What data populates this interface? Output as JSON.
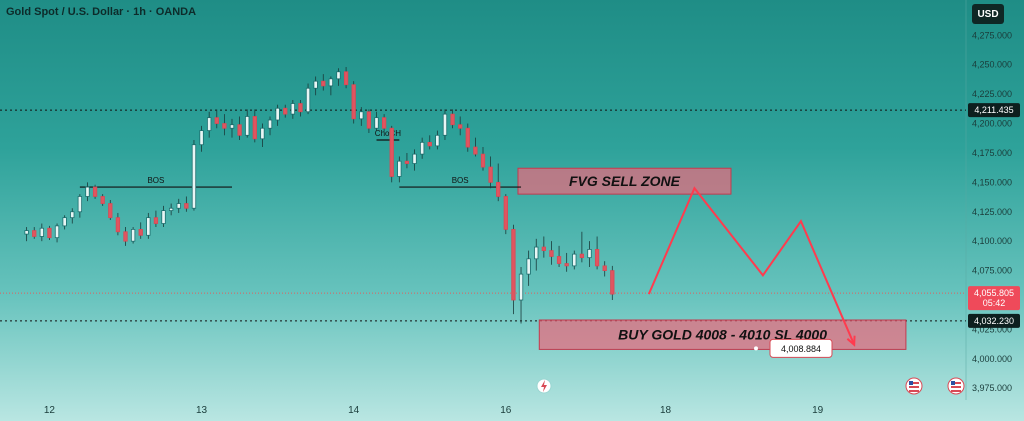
{
  "header": {
    "title": "Gold Spot / U.S. Dollar · 1h · OANDA",
    "currency": "USD"
  },
  "chart_data": {
    "type": "candlestick",
    "title": "Gold Spot / U.S. Dollar · 1h · OANDA",
    "currency": "USD",
    "ylim": [
      3965,
      4305
    ],
    "y_ticks": [
      {
        "value": 4275,
        "label": "4,275.000"
      },
      {
        "value": 4250,
        "label": "4,250.000"
      },
      {
        "value": 4225,
        "label": "4,225.000"
      },
      {
        "value": 4200,
        "label": "4,200.000"
      },
      {
        "value": 4175,
        "label": "4,175.000"
      },
      {
        "value": 4150,
        "label": "4,150.000"
      },
      {
        "value": 4125,
        "label": "4,125.000"
      },
      {
        "value": 4100,
        "label": "4,100.000"
      },
      {
        "value": 4075,
        "label": "4,075.000"
      },
      {
        "value": 4025,
        "label": "4,025.000"
      },
      {
        "value": 4000,
        "label": "4,000.000"
      },
      {
        "value": 3975,
        "label": "3,975.000"
      }
    ],
    "x_ticks": [
      {
        "label": "12",
        "index": 3
      },
      {
        "label": "13",
        "index": 23
      },
      {
        "label": "14",
        "index": 43
      },
      {
        "label": "16",
        "index": 63
      },
      {
        "label": "18",
        "index": 84
      },
      {
        "label": "19",
        "index": 104
      }
    ],
    "x_range": [
      -3.5,
      123.5
    ],
    "levels": [
      {
        "price": 4211.435,
        "label": "4,211.435",
        "style": "dotted-black"
      },
      {
        "price": 4032.23,
        "label": "4,032.230",
        "style": "dotted-black"
      },
      {
        "price": 4055.805,
        "label": "4,055.805",
        "sublabel": "05:42",
        "style": "dotted-red"
      }
    ],
    "candles": [
      [
        4106,
        4112,
        4100,
        4109
      ],
      [
        4109,
        4112,
        4102,
        4104
      ],
      [
        4104,
        4115,
        4100,
        4111
      ],
      [
        4111,
        4113,
        4101,
        4103
      ],
      [
        4103,
        4115,
        4099,
        4113
      ],
      [
        4113,
        4122,
        4110,
        4120
      ],
      [
        4120,
        4128,
        4115,
        4125
      ],
      [
        4125,
        4140,
        4120,
        4138
      ],
      [
        4138,
        4150,
        4134,
        4146
      ],
      [
        4146,
        4148,
        4136,
        4138
      ],
      [
        4138,
        4140,
        4130,
        4132
      ],
      [
        4132,
        4135,
        4118,
        4120
      ],
      [
        4120,
        4124,
        4105,
        4108
      ],
      [
        4108,
        4112,
        4096,
        4100
      ],
      [
        4100,
        4112,
        4098,
        4110
      ],
      [
        4110,
        4116,
        4102,
        4105
      ],
      [
        4105,
        4124,
        4102,
        4120
      ],
      [
        4120,
        4126,
        4112,
        4115
      ],
      [
        4115,
        4130,
        4112,
        4126
      ],
      [
        4126,
        4132,
        4122,
        4128
      ],
      [
        4128,
        4136,
        4124,
        4132
      ],
      [
        4132,
        4138,
        4125,
        4128
      ],
      [
        4128,
        4186,
        4126,
        4182
      ],
      [
        4182,
        4198,
        4176,
        4194
      ],
      [
        4194,
        4210,
        4188,
        4205
      ],
      [
        4205,
        4212,
        4196,
        4200
      ],
      [
        4200,
        4208,
        4190,
        4196
      ],
      [
        4196,
        4204,
        4188,
        4199
      ],
      [
        4199,
        4206,
        4186,
        4190
      ],
      [
        4190,
        4212,
        4188,
        4206
      ],
      [
        4206,
        4212,
        4184,
        4187
      ],
      [
        4187,
        4200,
        4180,
        4196
      ],
      [
        4196,
        4206,
        4190,
        4203
      ],
      [
        4203,
        4216,
        4198,
        4213
      ],
      [
        4213,
        4216,
        4205,
        4208
      ],
      [
        4208,
        4220,
        4204,
        4217
      ],
      [
        4217,
        4220,
        4206,
        4210
      ],
      [
        4210,
        4234,
        4208,
        4230
      ],
      [
        4230,
        4240,
        4224,
        4236
      ],
      [
        4236,
        4242,
        4228,
        4232
      ],
      [
        4232,
        4240,
        4224,
        4238
      ],
      [
        4238,
        4247,
        4232,
        4244
      ],
      [
        4244,
        4248,
        4230,
        4233
      ],
      [
        4233,
        4236,
        4200,
        4204
      ],
      [
        4204,
        4214,
        4198,
        4210
      ],
      [
        4210,
        4212,
        4192,
        4196
      ],
      [
        4196,
        4210,
        4194,
        4205
      ],
      [
        4205,
        4208,
        4193,
        4196
      ],
      [
        4196,
        4198,
        4150,
        4155
      ],
      [
        4155,
        4172,
        4150,
        4168
      ],
      [
        4168,
        4175,
        4162,
        4166
      ],
      [
        4166,
        4178,
        4160,
        4174
      ],
      [
        4174,
        4188,
        4170,
        4184
      ],
      [
        4184,
        4190,
        4178,
        4181
      ],
      [
        4181,
        4194,
        4178,
        4190
      ],
      [
        4190,
        4212,
        4186,
        4208
      ],
      [
        4208,
        4212,
        4196,
        4199
      ],
      [
        4199,
        4206,
        4190,
        4196
      ],
      [
        4196,
        4200,
        4176,
        4180
      ],
      [
        4180,
        4188,
        4172,
        4174
      ],
      [
        4174,
        4180,
        4160,
        4163
      ],
      [
        4163,
        4172,
        4145,
        4150
      ],
      [
        4150,
        4166,
        4134,
        4138
      ],
      [
        4138,
        4140,
        4106,
        4110
      ],
      [
        4110,
        4114,
        4038,
        4050
      ],
      [
        4050,
        4078,
        4030,
        4072
      ],
      [
        4072,
        4092,
        4062,
        4085
      ],
      [
        4085,
        4102,
        4075,
        4095
      ],
      [
        4095,
        4104,
        4086,
        4092
      ],
      [
        4092,
        4100,
        4080,
        4087
      ],
      [
        4087,
        4096,
        4078,
        4081
      ],
      [
        4081,
        4090,
        4074,
        4079
      ],
      [
        4079,
        4092,
        4076,
        4089
      ],
      [
        4089,
        4108,
        4082,
        4086
      ],
      [
        4086,
        4100,
        4078,
        4093
      ],
      [
        4093,
        4104,
        4076,
        4079
      ],
      [
        4079,
        4083,
        4070,
        4075
      ],
      [
        4075,
        4079,
        4050,
        4055
      ]
    ],
    "annotations": [
      {
        "type": "hline",
        "label": "BOS",
        "price": 4146,
        "from_index": 7,
        "to_index": 27
      },
      {
        "type": "hline",
        "label": "ChoCH",
        "price": 4186,
        "from_index": 46,
        "to_index": 49
      },
      {
        "type": "hline",
        "label": "BOS",
        "price": 4146,
        "from_index": 49,
        "to_index": 65
      }
    ],
    "zones": [
      {
        "label": "FVG SELL ZONE",
        "price_top": 4162,
        "price_bottom": 4140,
        "from_index": 64.6,
        "to_index": 92.6
      },
      {
        "label": "BUY GOLD 4008 - 4010 SL 4000",
        "price_top": 4033,
        "price_bottom": 4008,
        "from_index": 67.4,
        "to_index": 115.6
      }
    ],
    "projection": [
      {
        "index": 81.8,
        "price": 4055
      },
      {
        "index": 87.8,
        "price": 4145
      },
      {
        "index": 96.8,
        "price": 4071
      },
      {
        "index": 101.8,
        "price": 4117
      },
      {
        "index": 108.8,
        "price": 4012
      }
    ],
    "target_label": "4,008.884",
    "target_price": 4008.884
  }
}
